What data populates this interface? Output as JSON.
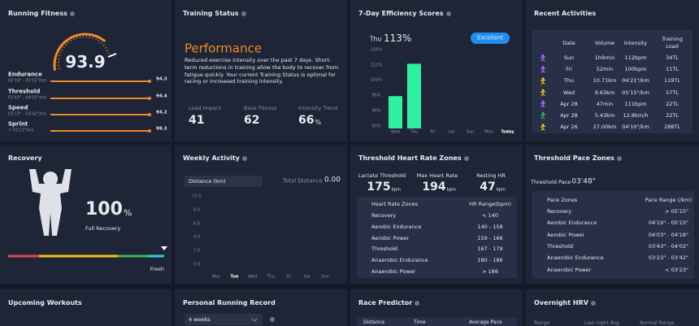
{
  "running_fitness": {
    "title": "Running Fitness",
    "score": "93.9",
    "metrics": [
      {
        "name": "Endurance",
        "range": "04'19\" - 05'15\"/km",
        "value": "94.3"
      },
      {
        "name": "Threshold",
        "range": "03'43\" - 04'02\"/km",
        "value": "94.4"
      },
      {
        "name": "Speed",
        "range": "03'23\" - 03'42\"/km",
        "value": "94.2"
      },
      {
        "name": "Sprint",
        "range": "< 03'23\"/km",
        "value": "98.3"
      }
    ]
  },
  "training_status": {
    "title": "Training Status",
    "status": "Performance",
    "description": "Reduced exercise intensity over the past 7 days. Short-term reductions in training allow the body to recover from fatigue quickly. Your current Training Status is optimal for racing or increased training intensity.",
    "stats": [
      {
        "label": "Load Impact",
        "value": "41"
      },
      {
        "label": "Base Fitness",
        "value": "62"
      },
      {
        "label": "Intensity Trend",
        "value": "66",
        "unit": "%"
      }
    ]
  },
  "efficiency": {
    "title": "7-Day Efficiency Scores",
    "day": "Thu",
    "score": "113%",
    "badge": "Excellent",
    "chart": {
      "type": "bar",
      "categories": [
        "Wed",
        "Thu",
        "Fri",
        "Sat",
        "Sun",
        "Mon",
        "Today"
      ],
      "values": [
        96,
        113,
        null,
        null,
        null,
        null,
        null
      ],
      "color": "#2ef0a0",
      "ylim": [
        79,
        123
      ],
      "yticks": [
        {
          "value": 120,
          "label": "120%"
        },
        {
          "value": 112,
          "label": "112%"
        },
        {
          "value": 104,
          "label": "104%"
        },
        {
          "value": 96,
          "label": "96%"
        },
        {
          "value": 88,
          "label": "88%"
        },
        {
          "value": 80,
          "label": "80%"
        }
      ]
    }
  },
  "recent_activities": {
    "title": "Recent Activities",
    "columns": [
      "Date",
      "Volume",
      "Intensity",
      "Training Load"
    ],
    "rows": [
      {
        "icon_color": "#b36bff",
        "cells": [
          "Sun",
          "1h9min",
          "112bpm",
          "34TL"
        ]
      },
      {
        "icon_color": "#b36bff",
        "cells": [
          "Fri",
          "52min",
          "100bpm",
          "11TL"
        ]
      },
      {
        "icon_color": "#f5c518",
        "cells": [
          "Thu",
          "10.71km",
          "04'21\"/km",
          "119TL"
        ]
      },
      {
        "icon_color": "#f5c518",
        "cells": [
          "Wed",
          "9.63km",
          "05'15\"/km",
          "57TL"
        ]
      },
      {
        "icon_color": "#b36bff",
        "cells": [
          "Apr 28",
          "47min",
          "111bpm",
          "22TL"
        ]
      },
      {
        "icon_color": "#3cba54",
        "cells": [
          "Apr 28",
          "5.43km",
          "12.8km/h",
          "22TL"
        ]
      },
      {
        "icon_color": "#f5c518",
        "cells": [
          "Apr 26",
          "27.00km",
          "04'10\"/km",
          "288TL"
        ]
      }
    ]
  },
  "recovery": {
    "title": "Recovery",
    "value": "100",
    "unit": "%",
    "label": "Full Recovery",
    "state": "Fresh"
  },
  "weekly_activity": {
    "title": "Weekly Activity",
    "selector": "Distance (km)",
    "total_label": "Total Distance",
    "total": "0.00",
    "chart": {
      "type": "bar",
      "categories": [
        "Mon",
        "Tue",
        "Wed",
        "Thu",
        "Fri",
        "Sat",
        "Sun"
      ],
      "values": [
        0,
        0,
        0,
        0,
        0,
        0,
        0
      ],
      "ylim": [
        0,
        10
      ],
      "yticks": [
        {
          "value": 10,
          "label": "10.0"
        },
        {
          "value": 8,
          "label": "8.0"
        },
        {
          "value": 6,
          "label": "6.0"
        },
        {
          "value": 4,
          "label": "4.0"
        },
        {
          "value": 2,
          "label": "2.0"
        },
        {
          "value": 0,
          "label": "0.0"
        }
      ]
    }
  },
  "hr_zones": {
    "title": "Threshold Heart Rate Zones",
    "stats": [
      {
        "label": "Lactate Threshold",
        "value": "175",
        "unit": "bpm"
      },
      {
        "label": "Max Heart Rate",
        "value": "194",
        "unit": "bpm"
      },
      {
        "label": "Resting HR",
        "value": "47",
        "unit": "bpm"
      }
    ],
    "columns": [
      "Heart Rate Zones",
      "HR Range(bpm)"
    ],
    "rows": [
      {
        "color": "#3ec6e0",
        "zone": "Recovery",
        "range": "< 140"
      },
      {
        "color": "#3cba54",
        "zone": "Aerobic Endurance",
        "range": "140 - 158"
      },
      {
        "color": "#f5d033",
        "zone": "Aerobic Power",
        "range": "159 - 166"
      },
      {
        "color": "#f5a623",
        "zone": "Threshold",
        "range": "167 - 179"
      },
      {
        "color": "#ef7c4a",
        "zone": "Anaerobic Endurance",
        "range": "180 - 186"
      },
      {
        "color": "#e8454f",
        "zone": "Anaerobic Power",
        "range": "> 186"
      }
    ]
  },
  "pace_zones": {
    "title": "Threshold Pace Zones",
    "threshold_label": "Threshold Pace",
    "threshold": "03'48\"",
    "columns": [
      "Pace Zones",
      "Pace Range (/km)"
    ],
    "rows": [
      {
        "color": "#3ec6e0",
        "zone": "Recovery",
        "range": "> 05'15\""
      },
      {
        "color": "#3cba54",
        "zone": "Aerobic Endurance",
        "range": "04'19\" - 05'15\""
      },
      {
        "color": "#f5d033",
        "zone": "Aerobic Power",
        "range": "04'03\" - 04'18\""
      },
      {
        "color": "#f5a623",
        "zone": "Threshold",
        "range": "03'43\" - 04'02\""
      },
      {
        "color": "#ef7c4a",
        "zone": "Anaerobic Endurance",
        "range": "03'23\" - 03'42\""
      },
      {
        "color": "#e8454f",
        "zone": "Anaerobic Power",
        "range": "< 03'23\""
      }
    ]
  },
  "upcoming_workouts": {
    "title": "Upcoming Workouts"
  },
  "personal_record": {
    "title": "Personal Running Record",
    "selector": "4 weeks"
  },
  "race_predictor": {
    "title": "Race Predictor",
    "columns": [
      "Distance",
      "Time",
      "Average Pace"
    ]
  },
  "overnight_hrv": {
    "title": "Overnight HRV",
    "columns": [
      "Range",
      "Last night Avg",
      "Normal Range"
    ]
  }
}
